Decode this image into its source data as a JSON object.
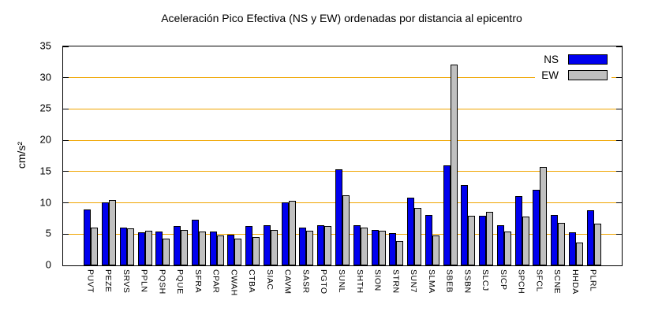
{
  "title": "Aceleración Pico Efectiva (NS y EW) ordenadas por distancia al epicentro",
  "y_axis_label": "cm/s²",
  "legend": {
    "ns_label": "NS",
    "ew_label": "EW"
  },
  "colors": {
    "ns": "#0000ee",
    "ew": "#c0c0c0",
    "grid": "#f0a500",
    "axis": "#000000",
    "background": "#ffffff"
  },
  "chart_data": {
    "type": "bar",
    "title": "Aceleración Pico Efectiva (NS y EW) ordenadas por distancia al epicentro",
    "xlabel": "",
    "ylabel": "cm/s²",
    "ylim": [
      0,
      35
    ],
    "yticks": [
      0,
      5,
      10,
      15,
      20,
      25,
      30,
      35
    ],
    "grid": "horizontal",
    "legend_position": "top-right-inside",
    "categories": [
      "PUVT",
      "PEZE",
      "SRVS",
      "PPLN",
      "PQSH",
      "PQUE",
      "SFRA",
      "CPAR",
      "CWAH",
      "CTBA",
      "SIAC",
      "CAVM",
      "SASR",
      "PGTO",
      "SUNL",
      "SHTH",
      "SION",
      "STRN",
      "SUN7",
      "SLMA",
      "SBEB",
      "SSBN",
      "SLCJ",
      "SICP",
      "SPCH",
      "SFCL",
      "SCNE",
      "HHDA",
      "PLRL"
    ],
    "series": [
      {
        "name": "NS",
        "color": "#0000ee",
        "values": [
          8.9,
          10.1,
          6.0,
          5.3,
          5.4,
          6.3,
          7.3,
          5.4,
          4.9,
          6.3,
          6.4,
          10.1,
          6.1,
          6.4,
          15.4,
          6.4,
          5.7,
          5.2,
          10.8,
          8.0,
          16.0,
          12.9,
          7.9,
          6.4,
          11.1,
          12.1,
          8.1,
          5.3,
          8.8
        ]
      },
      {
        "name": "EW",
        "color": "#c0c0c0",
        "values": [
          6.0,
          10.4,
          5.9,
          5.6,
          4.3,
          5.7,
          5.4,
          4.8,
          4.3,
          4.5,
          5.7,
          10.3,
          5.6,
          6.3,
          11.2,
          6.1,
          5.5,
          3.9,
          9.2,
          4.8,
          32.1,
          7.9,
          8.6,
          5.4,
          7.8,
          15.7,
          6.8,
          3.6,
          6.7
        ]
      }
    ]
  }
}
